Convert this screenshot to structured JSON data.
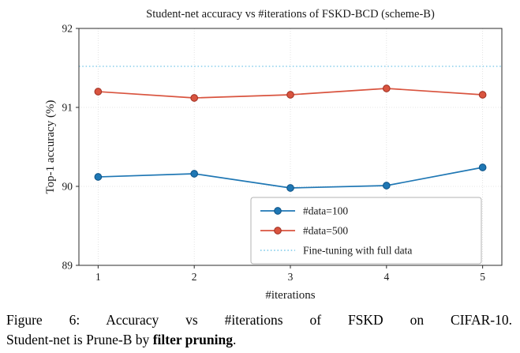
{
  "chart_data": {
    "type": "line",
    "title": "Student-net accuracy vs #iterations of FSKD-BCD (scheme-B)",
    "xlabel": "#iterations",
    "ylabel": "Top-1 accuracy (%)",
    "x": [
      1,
      2,
      3,
      4,
      5
    ],
    "xticks": [
      1,
      2,
      3,
      4,
      5
    ],
    "yticks": [
      89,
      90,
      91,
      92
    ],
    "xlim": [
      0.8,
      5.2
    ],
    "ylim": [
      89,
      92
    ],
    "grid": true,
    "legend_position": "lower right",
    "series": [
      {
        "name": "#data=100",
        "color": "#1f77b4",
        "edge_color": "#10568a",
        "marker": "circle",
        "values": [
          90.12,
          90.16,
          89.98,
          90.01,
          90.24
        ]
      },
      {
        "name": "#data=500",
        "color": "#d9543f",
        "edge_color": "#a33326",
        "marker": "circle",
        "values": [
          91.2,
          91.12,
          91.16,
          91.24,
          91.16
        ]
      }
    ],
    "reference_line": {
      "name": "Fine-tuning with full data",
      "value": 91.52,
      "color": "#87ceeb",
      "style": "dotted"
    }
  },
  "caption": {
    "line1": "Figure 6:  Accuracy vs #iterations of FSKD on CIFAR-10.",
    "line2_prefix": "Student-net is Prune-B by ",
    "line2_bold": "filter pruning",
    "line2_suffix": "."
  }
}
